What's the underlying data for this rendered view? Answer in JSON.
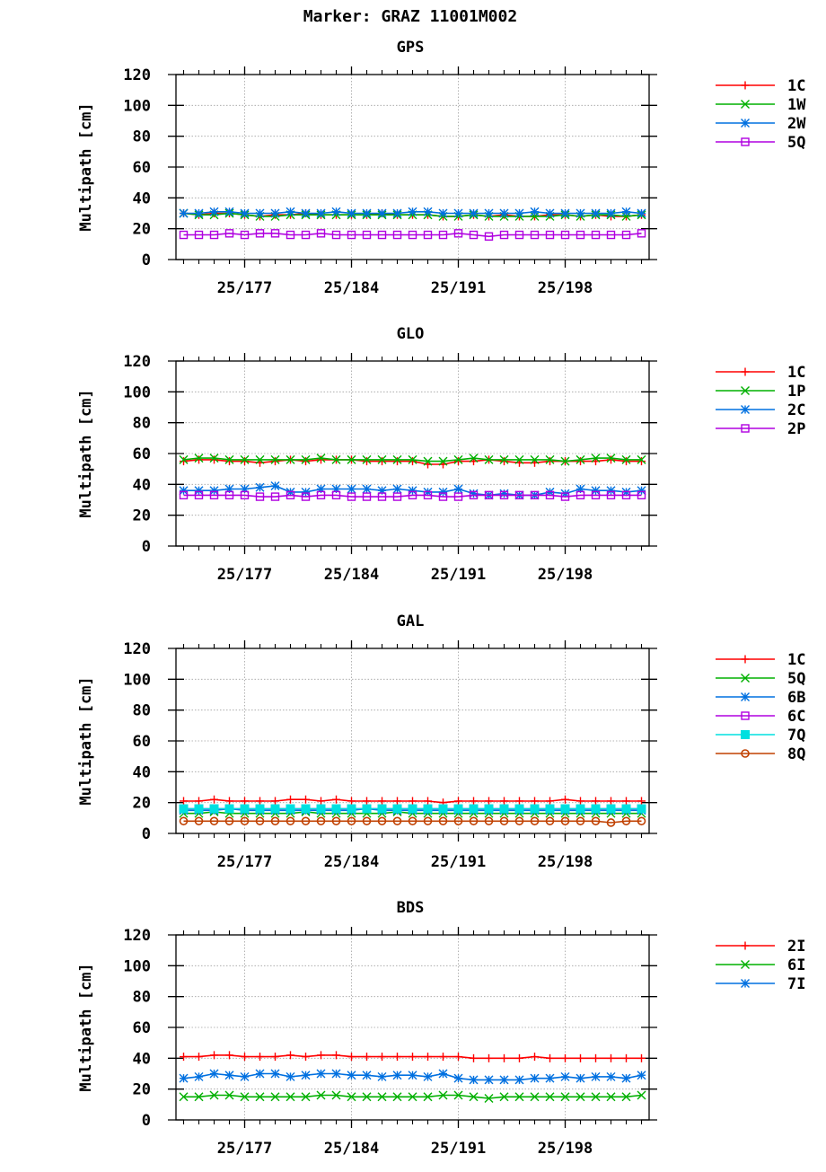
{
  "figure": {
    "title": "Marker: GRAZ 11001M002"
  },
  "chart_data": [
    {
      "type": "line",
      "title": "GPS",
      "ylabel": "Multipath [cm]",
      "ylim": [
        0,
        120
      ],
      "yticks": [
        0,
        20,
        40,
        60,
        80,
        100,
        120
      ],
      "xlim": [
        172.5,
        203.5
      ],
      "xticks": [
        177,
        184,
        191,
        198
      ],
      "xtick_labels": [
        "25/177",
        "25/184",
        "25/191",
        "25/198"
      ],
      "x": [
        173,
        174,
        175,
        176,
        177,
        178,
        179,
        180,
        181,
        182,
        183,
        184,
        185,
        186,
        187,
        188,
        189,
        190,
        191,
        192,
        193,
        194,
        195,
        196,
        197,
        198,
        199,
        200,
        201,
        202,
        203
      ],
      "grid": true,
      "legend_position": "right",
      "series": [
        {
          "name": "1C",
          "color": "#ff0000",
          "marker": "plus",
          "values": [
            30,
            29,
            30,
            30,
            29,
            28,
            29,
            29,
            30,
            29,
            29,
            29,
            29,
            30,
            29,
            29,
            29,
            28,
            28,
            29,
            28,
            29,
            28,
            28,
            29,
            29,
            28,
            29,
            28,
            28,
            29
          ]
        },
        {
          "name": "1W",
          "color": "#00b000",
          "marker": "x",
          "values": [
            30,
            29,
            29,
            30,
            29,
            28,
            28,
            29,
            29,
            29,
            29,
            29,
            29,
            29,
            29,
            29,
            29,
            28,
            28,
            29,
            28,
            28,
            28,
            28,
            28,
            29,
            28,
            29,
            29,
            28,
            29
          ]
        },
        {
          "name": "2W",
          "color": "#0070e0",
          "marker": "star",
          "values": [
            30,
            30,
            31,
            31,
            30,
            30,
            30,
            31,
            30,
            30,
            31,
            30,
            30,
            30,
            30,
            31,
            31,
            30,
            30,
            30,
            30,
            30,
            30,
            31,
            30,
            30,
            30,
            30,
            30,
            31,
            30
          ]
        },
        {
          "name": "5Q",
          "color": "#b000e0",
          "marker": "square",
          "values": [
            16,
            16,
            16,
            17,
            16,
            17,
            17,
            16,
            16,
            17,
            16,
            16,
            16,
            16,
            16,
            16,
            16,
            16,
            17,
            16,
            15,
            16,
            16,
            16,
            16,
            16,
            16,
            16,
            16,
            16,
            17
          ]
        }
      ]
    },
    {
      "type": "line",
      "title": "GLO",
      "ylabel": "Multipath [cm]",
      "ylim": [
        0,
        120
      ],
      "yticks": [
        0,
        20,
        40,
        60,
        80,
        100,
        120
      ],
      "xlim": [
        172.5,
        203.5
      ],
      "xticks": [
        177,
        184,
        191,
        198
      ],
      "xtick_labels": [
        "25/177",
        "25/184",
        "25/191",
        "25/198"
      ],
      "x": [
        173,
        174,
        175,
        176,
        177,
        178,
        179,
        180,
        181,
        182,
        183,
        184,
        185,
        186,
        187,
        188,
        189,
        190,
        191,
        192,
        193,
        194,
        195,
        196,
        197,
        198,
        199,
        200,
        201,
        202,
        203
      ],
      "grid": true,
      "legend_position": "right",
      "series": [
        {
          "name": "1C",
          "color": "#ff0000",
          "marker": "plus",
          "values": [
            55,
            56,
            56,
            55,
            55,
            54,
            55,
            56,
            55,
            56,
            56,
            56,
            55,
            55,
            55,
            55,
            53,
            53,
            55,
            55,
            56,
            55,
            54,
            54,
            55,
            55,
            55,
            55,
            56,
            55,
            55
          ]
        },
        {
          "name": "1P",
          "color": "#00b000",
          "marker": "x",
          "values": [
            56,
            57,
            57,
            56,
            56,
            56,
            56,
            56,
            56,
            57,
            56,
            56,
            56,
            56,
            56,
            56,
            55,
            55,
            56,
            57,
            56,
            56,
            56,
            56,
            56,
            55,
            56,
            57,
            57,
            56,
            56
          ]
        },
        {
          "name": "2C",
          "color": "#0070e0",
          "marker": "star",
          "values": [
            36,
            36,
            36,
            37,
            37,
            38,
            39,
            35,
            35,
            37,
            37,
            37,
            37,
            36,
            37,
            36,
            35,
            35,
            37,
            34,
            33,
            34,
            33,
            33,
            35,
            34,
            37,
            36,
            36,
            35,
            36
          ]
        },
        {
          "name": "2P",
          "color": "#b000e0",
          "marker": "square",
          "values": [
            33,
            33,
            33,
            33,
            33,
            32,
            32,
            33,
            32,
            33,
            33,
            32,
            32,
            32,
            32,
            33,
            33,
            32,
            32,
            33,
            33,
            33,
            33,
            33,
            33,
            32,
            33,
            33,
            33,
            33,
            33
          ]
        }
      ]
    },
    {
      "type": "line",
      "title": "GAL",
      "ylabel": "Multipath [cm]",
      "ylim": [
        0,
        120
      ],
      "yticks": [
        0,
        20,
        40,
        60,
        80,
        100,
        120
      ],
      "xlim": [
        172.5,
        203.5
      ],
      "xticks": [
        177,
        184,
        191,
        198
      ],
      "xtick_labels": [
        "25/177",
        "25/184",
        "25/191",
        "25/198"
      ],
      "x": [
        173,
        174,
        175,
        176,
        177,
        178,
        179,
        180,
        181,
        182,
        183,
        184,
        185,
        186,
        187,
        188,
        189,
        190,
        191,
        192,
        193,
        194,
        195,
        196,
        197,
        198,
        199,
        200,
        201,
        202,
        203
      ],
      "grid": true,
      "legend_position": "right",
      "series": [
        {
          "name": "1C",
          "color": "#ff0000",
          "marker": "plus",
          "values": [
            21,
            21,
            22,
            21,
            21,
            21,
            21,
            22,
            22,
            21,
            22,
            21,
            21,
            21,
            21,
            21,
            21,
            20,
            21,
            21,
            21,
            21,
            21,
            21,
            21,
            22,
            21,
            21,
            21,
            21,
            21
          ]
        },
        {
          "name": "5Q",
          "color": "#00b000",
          "marker": "x",
          "values": [
            13,
            13,
            14,
            13,
            13,
            13,
            13,
            13,
            14,
            13,
            13,
            13,
            13,
            13,
            14,
            13,
            13,
            13,
            13,
            13,
            13,
            13,
            13,
            13,
            13,
            13,
            13,
            13,
            13,
            13,
            13
          ]
        },
        {
          "name": "6B",
          "color": "#0070e0",
          "marker": "star",
          "values": [
            15,
            15,
            15,
            16,
            15,
            15,
            15,
            15,
            15,
            15,
            15,
            15,
            16,
            15,
            15,
            15,
            15,
            15,
            15,
            15,
            15,
            15,
            15,
            15,
            15,
            15,
            15,
            15,
            15,
            15,
            15
          ]
        },
        {
          "name": "6C",
          "color": "#b000e0",
          "marker": "square",
          "values": [
            16,
            16,
            16,
            16,
            16,
            16,
            16,
            16,
            16,
            16,
            16,
            16,
            16,
            16,
            16,
            16,
            16,
            16,
            16,
            16,
            16,
            16,
            16,
            16,
            16,
            16,
            16,
            16,
            16,
            16,
            16
          ]
        },
        {
          "name": "7Q",
          "color": "#00e0e0",
          "marker": "filled-square",
          "values": [
            16,
            16,
            16,
            16,
            16,
            16,
            16,
            16,
            16,
            16,
            16,
            16,
            16,
            16,
            16,
            16,
            16,
            16,
            16,
            16,
            16,
            16,
            16,
            16,
            16,
            16,
            16,
            16,
            16,
            16,
            16
          ]
        },
        {
          "name": "8Q",
          "color": "#c04000",
          "marker": "circle",
          "values": [
            8,
            8,
            8,
            8,
            8,
            8,
            8,
            8,
            8,
            8,
            8,
            8,
            8,
            8,
            8,
            8,
            8,
            8,
            8,
            8,
            8,
            8,
            8,
            8,
            8,
            8,
            8,
            8,
            7,
            8,
            8
          ]
        }
      ]
    },
    {
      "type": "line",
      "title": "BDS",
      "ylabel": "Multipath [cm]",
      "ylim": [
        0,
        120
      ],
      "yticks": [
        0,
        20,
        40,
        60,
        80,
        100,
        120
      ],
      "xlim": [
        172.5,
        203.5
      ],
      "xticks": [
        177,
        184,
        191,
        198
      ],
      "xtick_labels": [
        "25/177",
        "25/184",
        "25/191",
        "25/198"
      ],
      "x": [
        173,
        174,
        175,
        176,
        177,
        178,
        179,
        180,
        181,
        182,
        183,
        184,
        185,
        186,
        187,
        188,
        189,
        190,
        191,
        192,
        193,
        194,
        195,
        196,
        197,
        198,
        199,
        200,
        201,
        202,
        203
      ],
      "grid": true,
      "legend_position": "right",
      "series": [
        {
          "name": "2I",
          "color": "#ff0000",
          "marker": "plus",
          "values": [
            41,
            41,
            42,
            42,
            41,
            41,
            41,
            42,
            41,
            42,
            42,
            41,
            41,
            41,
            41,
            41,
            41,
            41,
            41,
            40,
            40,
            40,
            40,
            41,
            40,
            40,
            40,
            40,
            40,
            40,
            40
          ]
        },
        {
          "name": "6I",
          "color": "#00b000",
          "marker": "x",
          "values": [
            15,
            15,
            16,
            16,
            15,
            15,
            15,
            15,
            15,
            16,
            16,
            15,
            15,
            15,
            15,
            15,
            15,
            16,
            16,
            15,
            14,
            15,
            15,
            15,
            15,
            15,
            15,
            15,
            15,
            15,
            16
          ]
        },
        {
          "name": "7I",
          "color": "#0070e0",
          "marker": "star",
          "values": [
            27,
            28,
            30,
            29,
            28,
            30,
            30,
            28,
            29,
            30,
            30,
            29,
            29,
            28,
            29,
            29,
            28,
            30,
            27,
            26,
            26,
            26,
            26,
            27,
            27,
            28,
            27,
            28,
            28,
            27,
            29
          ]
        }
      ]
    }
  ]
}
